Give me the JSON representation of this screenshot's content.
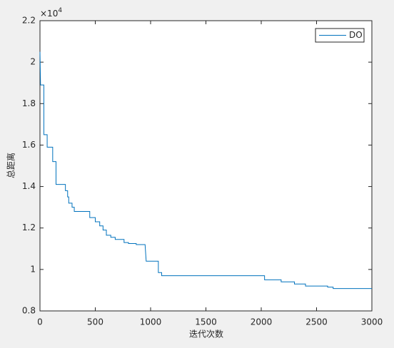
{
  "chart_data": {
    "type": "line",
    "x_label": "迭代次数",
    "y_label": "总距离",
    "y_multiplier": {
      "base": "×10",
      "exponent": "4"
    },
    "x": [
      0,
      5,
      35,
      35,
      65,
      65,
      115,
      115,
      145,
      145,
      230,
      230,
      250,
      250,
      260,
      260,
      290,
      290,
      310,
      310,
      450,
      450,
      500,
      500,
      540,
      540,
      570,
      570,
      600,
      600,
      640,
      640,
      680,
      680,
      760,
      760,
      800,
      800,
      870,
      870,
      950,
      960,
      1070,
      1070,
      1100,
      1100,
      2030,
      2030,
      2180,
      2180,
      2300,
      2300,
      2400,
      2400,
      2600,
      2600,
      2650,
      2650,
      3000
    ],
    "series": [
      {
        "name": "DO",
        "color": "#0072bd",
        "values": [
          2.05,
          1.89,
          1.89,
          1.65,
          1.65,
          1.59,
          1.59,
          1.52,
          1.52,
          1.41,
          1.41,
          1.38,
          1.38,
          1.35,
          1.35,
          1.32,
          1.32,
          1.3,
          1.3,
          1.28,
          1.28,
          1.25,
          1.25,
          1.23,
          1.23,
          1.21,
          1.21,
          1.19,
          1.19,
          1.165,
          1.165,
          1.155,
          1.155,
          1.145,
          1.145,
          1.13,
          1.13,
          1.125,
          1.125,
          1.12,
          1.12,
          1.04,
          1.04,
          0.985,
          0.985,
          0.97,
          0.97,
          0.95,
          0.95,
          0.94,
          0.94,
          0.93,
          0.93,
          0.92,
          0.92,
          0.915,
          0.915,
          0.908,
          0.908
        ]
      }
    ],
    "xlim": [
      0,
      3000
    ],
    "xticks": [
      0,
      500,
      1000,
      1500,
      2000,
      2500,
      3000
    ],
    "ylim": [
      0.8,
      2.2
    ],
    "yticks": [
      0.8,
      1,
      1.2,
      1.4,
      1.6,
      1.8,
      2,
      2.2
    ],
    "legend": "top-right"
  }
}
